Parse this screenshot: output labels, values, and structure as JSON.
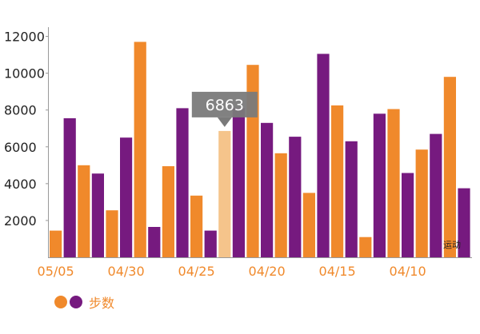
{
  "colors": {
    "orange": "#f0892b",
    "purple": "#761a7f",
    "highlight": "#f5c48b",
    "tooltip_bg": "#7a7a7a"
  },
  "chart_data": {
    "type": "bar",
    "ylim": [
      0,
      12500
    ],
    "y_ticks": [
      2000,
      4000,
      6000,
      8000,
      10000,
      12000
    ],
    "x_tick_labels": [
      "05/05",
      "04/30",
      "04/25",
      "04/20",
      "04/15",
      "04/10"
    ],
    "values": [
      1450,
      7550,
      5000,
      4550,
      2550,
      6500,
      11700,
      1650,
      4950,
      8100,
      3350,
      1450,
      6863,
      8100,
      10450,
      7300,
      5650,
      6550,
      3500,
      11050,
      8250,
      6300,
      1100,
      7800,
      8050,
      4580,
      5850,
      6700,
      9800,
      3750
    ],
    "bar_colors": [
      "orange",
      "purple"
    ],
    "highlight_index": 12,
    "tooltip": "6863",
    "annotation": "运动",
    "legend": {
      "label": "步数"
    },
    "grid": false
  }
}
